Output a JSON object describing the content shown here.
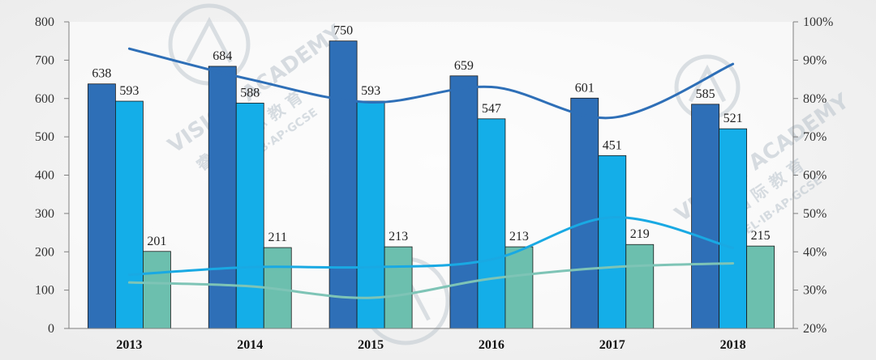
{
  "chart_data": {
    "type": "bar",
    "categories": [
      "2013",
      "2014",
      "2015",
      "2016",
      "2017",
      "2018"
    ],
    "series": [
      {
        "values": [
          638,
          684,
          750,
          659,
          601,
          585
        ],
        "color": "#2e6fb7",
        "show_labels": true
      },
      {
        "values": [
          593,
          588,
          593,
          547,
          451,
          521
        ],
        "color": "#14aee8",
        "show_labels": true
      },
      {
        "values": [
          201,
          211,
          213,
          213,
          219,
          215
        ],
        "color": "#6cbfae",
        "show_labels": true
      }
    ],
    "line_series": [
      {
        "axis": "right",
        "values": [
          93,
          85,
          79,
          83,
          75,
          89
        ],
        "color": "#2e6fb7"
      },
      {
        "axis": "right",
        "values": [
          34,
          36,
          36,
          38,
          49,
          41
        ],
        "color": "#19a9e3"
      },
      {
        "axis": "right",
        "values": [
          32,
          31,
          28,
          33,
          36,
          37
        ],
        "color": "#7ec4b6"
      }
    ],
    "ylim": [
      0,
      800
    ],
    "yticks": [
      "0",
      "100",
      "200",
      "300",
      "400",
      "500",
      "600",
      "700",
      "800"
    ],
    "y2lim": [
      20,
      100
    ],
    "y2ticks": [
      "20%",
      "30%",
      "40%",
      "50%",
      "60%",
      "70%",
      "80%",
      "90%",
      "100%"
    ],
    "grid": false,
    "legend": "none"
  },
  "watermark": {
    "brand": "VISION ACADEMY",
    "chinese": "睿 思 国 际 教 育",
    "subline": "A-LEVEL·IB·AP·GCSE"
  }
}
